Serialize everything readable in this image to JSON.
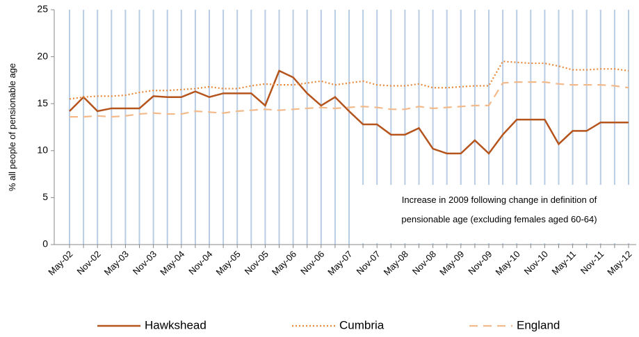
{
  "chart_data": {
    "type": "line",
    "y_label": "% all people of pensionable age",
    "categories": [
      "May-02",
      null,
      "Nov-02",
      null,
      "May-03",
      null,
      "Nov-03",
      null,
      "May-04",
      null,
      "Nov-04",
      null,
      "May-05",
      null,
      "Nov-05",
      null,
      "May-06",
      null,
      "Nov-06",
      null,
      "May-07",
      null,
      "Nov-07",
      null,
      "May-08",
      null,
      "Nov-08",
      null,
      "May-09",
      null,
      "Nov-09",
      null,
      "May-10",
      null,
      "Nov-10",
      null,
      "May-11",
      null,
      "Nov-11",
      null,
      "May-12"
    ],
    "series": [
      {
        "name": "Hawkshead",
        "color": "#b5541c",
        "dash": "solid",
        "values": [
          14.2,
          15.7,
          14.2,
          14.5,
          14.5,
          14.5,
          15.8,
          15.7,
          15.7,
          16.3,
          15.7,
          16.1,
          16.1,
          16.1,
          14.8,
          18.5,
          17.8,
          16.1,
          14.8,
          15.7,
          14.2,
          12.8,
          12.8,
          11.7,
          11.7,
          12.4,
          10.2,
          9.7,
          9.7,
          11.1,
          9.7,
          11.7,
          13.3,
          13.3,
          13.3,
          10.7,
          12.1,
          12.1,
          13.0,
          13.0,
          13.0
        ]
      },
      {
        "name": "Cumbria",
        "color": "#e8893a",
        "dash": "dotted",
        "values": [
          15.5,
          15.7,
          15.8,
          15.8,
          15.9,
          16.2,
          16.4,
          16.4,
          16.5,
          16.6,
          16.8,
          16.6,
          16.6,
          16.9,
          17.1,
          17.0,
          17.0,
          17.2,
          17.4,
          17.0,
          17.2,
          17.4,
          17.0,
          16.9,
          16.9,
          17.1,
          16.7,
          16.7,
          16.8,
          16.9,
          16.9,
          19.5,
          19.4,
          19.3,
          19.3,
          19.0,
          18.6,
          18.6,
          18.7,
          18.7,
          18.5
        ]
      },
      {
        "name": "England",
        "color": "#f2b98a",
        "dash": "dashed",
        "values": [
          13.6,
          13.6,
          13.7,
          13.6,
          13.7,
          13.9,
          14.0,
          13.9,
          13.9,
          14.2,
          14.1,
          14.0,
          14.2,
          14.3,
          14.4,
          14.3,
          14.4,
          14.5,
          14.6,
          14.5,
          14.6,
          14.7,
          14.6,
          14.4,
          14.4,
          14.7,
          14.5,
          14.6,
          14.7,
          14.8,
          14.8,
          17.2,
          17.3,
          17.3,
          17.3,
          17.1,
          17.0,
          17.0,
          17.0,
          16.9,
          16.7
        ]
      }
    ],
    "ylim": [
      0,
      25
    ],
    "yticks": [
      0,
      5,
      10,
      15,
      20,
      25
    ],
    "grid": "vertical",
    "grid_color": "#b8cce4",
    "annotation": [
      "Increase in 2009 following change in definition of",
      "pensionable age (excluding females aged 60-64)"
    ],
    "legend": "bottom"
  }
}
